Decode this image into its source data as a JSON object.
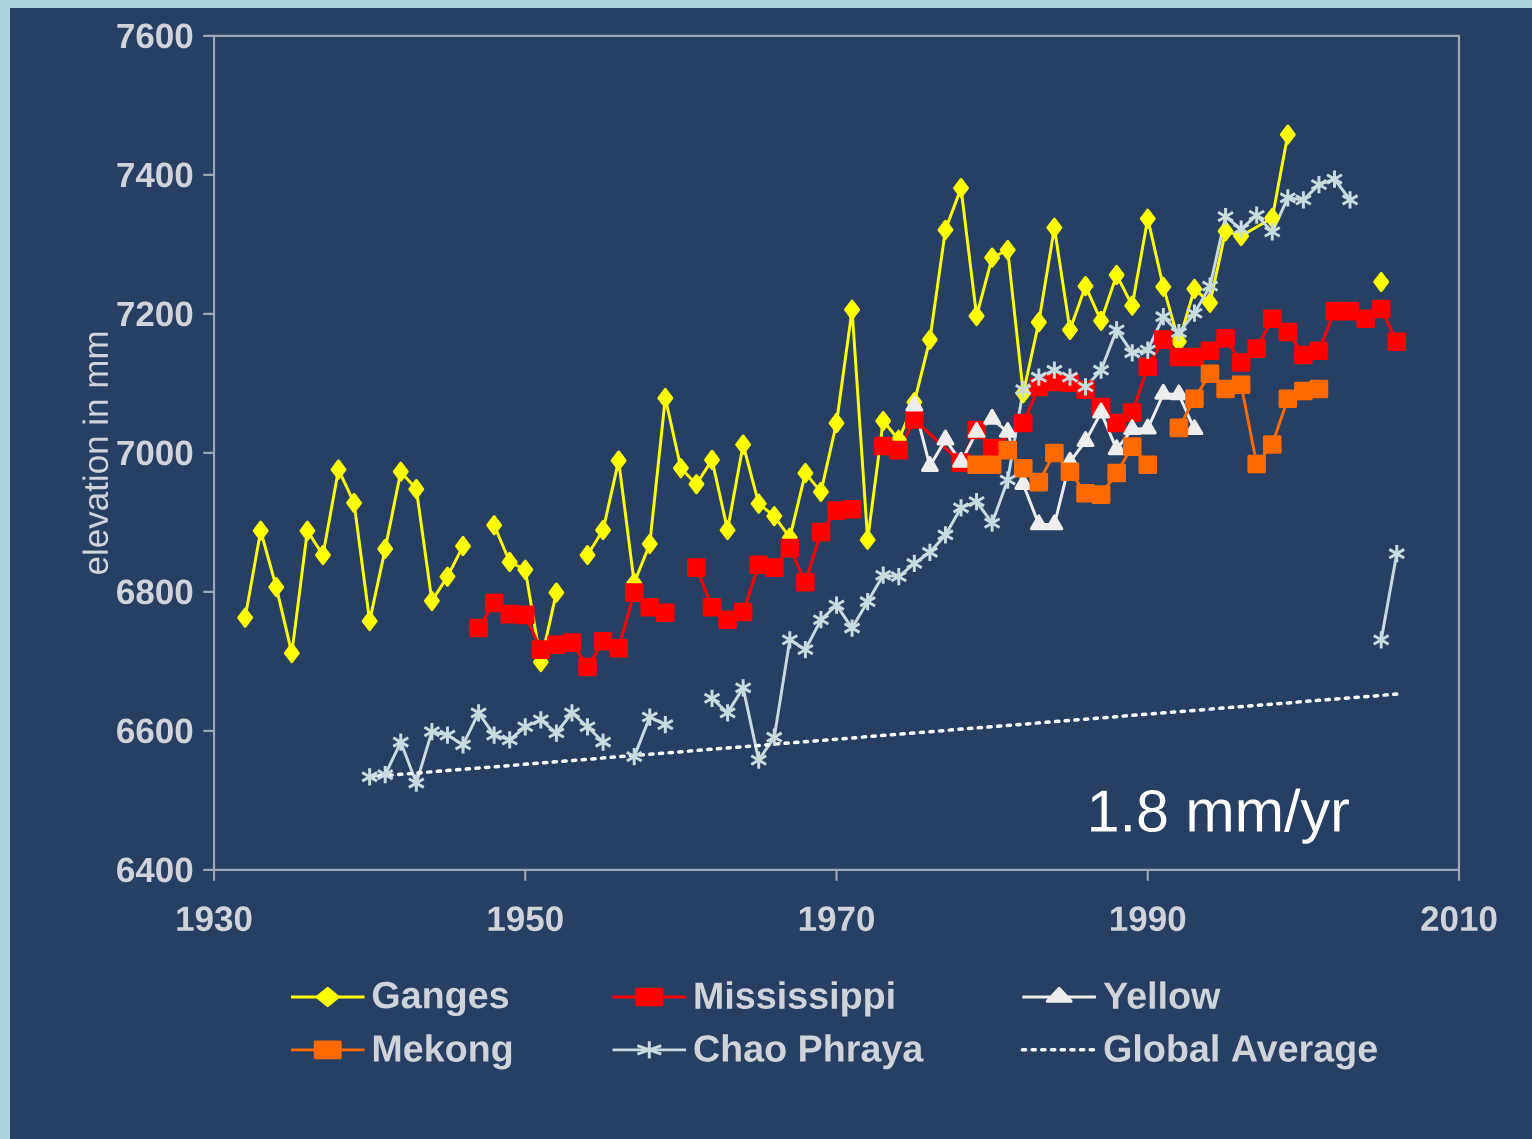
{
  "chart_data": {
    "type": "line",
    "ylabel": "elevation in mm",
    "xlim": [
      1930,
      2010
    ],
    "xticks": [
      1930,
      1950,
      1970,
      1990,
      2010
    ],
    "ylim": [
      6400,
      7600
    ],
    "yticks": [
      6400,
      6600,
      6800,
      7000,
      7200,
      7400,
      7600
    ],
    "legend": "bottom",
    "annotations": [
      "1.8 mm/yr"
    ],
    "series": [
      {
        "name": "Ganges",
        "color": "#ffff00",
        "marker": "diamond",
        "line_style": "solid",
        "x": [
          1932,
          1933,
          1934,
          1935,
          1936,
          1937,
          1938,
          1939,
          1940,
          1941,
          1942,
          1943,
          1944,
          1945,
          1946,
          1947,
          1948,
          1949,
          1950,
          1951,
          1952,
          1953,
          1954,
          1955,
          1956,
          1957,
          1958,
          1959,
          1960,
          1961,
          1962,
          1963,
          1964,
          1965,
          1966,
          1967,
          1968,
          1969,
          1970,
          1971,
          1972,
          1973,
          1974,
          1975,
          1976,
          1977,
          1978,
          1979,
          1980,
          1981,
          1982,
          1983,
          1984,
          1985,
          1986,
          1987,
          1988,
          1989,
          1990,
          1991,
          1992,
          1993,
          1994,
          1995,
          1996,
          1998,
          1999,
          2000,
          2005
        ],
        "values": [
          6763,
          6888,
          6807,
          6712,
          6888,
          6853,
          6976,
          6928,
          6758,
          6862,
          6973,
          6948,
          6787,
          6822,
          6866,
          null,
          6896,
          6843,
          6832,
          6699,
          6799,
          null,
          6853,
          6889,
          6989,
          6813,
          6869,
          7079,
          6978,
          6955,
          6990,
          6889,
          7012,
          6927,
          6909,
          6878,
          6971,
          6944,
          7043,
          7206,
          6875,
          7046,
          7019,
          7073,
          7163,
          7321,
          7381,
          7197,
          7281,
          7292,
          7086,
          7188,
          7324,
          7177,
          7240,
          7190,
          7256,
          7212,
          7337,
          7239,
          7160,
          7236,
          7216,
          7319,
          7312,
          7338,
          7458,
          null,
          7246
        ]
      },
      {
        "name": "Mississippi",
        "color": "#ff0000",
        "marker": "square",
        "line_style": "solid",
        "x": [
          1947,
          1948,
          1949,
          1950,
          1951,
          1952,
          1953,
          1954,
          1955,
          1956,
          1957,
          1958,
          1959,
          1960,
          1961,
          1962,
          1963,
          1964,
          1965,
          1966,
          1967,
          1968,
          1969,
          1970,
          1971,
          1972,
          1973,
          1974,
          1975,
          1978,
          1979,
          1980,
          1982,
          1983,
          1984,
          1985,
          1986,
          1987,
          1988,
          1989,
          1990,
          1991,
          1992,
          1993,
          1994,
          1995,
          1996,
          1997,
          1998,
          1999,
          2000,
          2001,
          2002,
          2003,
          2004,
          2005,
          2006
        ],
        "values": [
          6748,
          6784,
          6768,
          6767,
          6717,
          6724,
          6727,
          6692,
          6729,
          6719,
          6799,
          6778,
          6770,
          null,
          6835,
          6778,
          6760,
          6771,
          6839,
          6835,
          6863,
          6814,
          6886,
          6917,
          6919,
          null,
          7010,
          7004,
          7048,
          6986,
          7033,
          7007,
          7043,
          7095,
          7102,
          7101,
          7091,
          7066,
          7043,
          7058,
          7124,
          7163,
          7138,
          7138,
          7147,
          7165,
          7130,
          7150,
          7193,
          7174,
          7141,
          7147,
          7204,
          7204,
          7193,
          7207,
          7160
        ]
      },
      {
        "name": "Yellow",
        "color": "#eeeeee",
        "marker": "triangle",
        "line_style": "solid",
        "x": [
          1975,
          1976,
          1977,
          1978,
          1979,
          1980,
          1981,
          1982,
          1983,
          1984,
          1985,
          1986,
          1987,
          1988,
          1989,
          1990,
          1991,
          1992,
          1993
        ],
        "values": [
          7068,
          6981,
          7019,
          6987,
          7030,
          7049,
          7030,
          6955,
          6897,
          6897,
          6987,
          7017,
          7058,
          7005,
          7034,
          7035,
          7085,
          7084,
          7034
        ]
      },
      {
        "name": "Mekong",
        "color": "#ff6a00",
        "marker": "square",
        "line_style": "solid",
        "x": [
          1979,
          1980,
          1981,
          1982,
          1983,
          1984,
          1985,
          1986,
          1987,
          1988,
          1989,
          1990,
          1991,
          1992,
          1993,
          1994,
          1995,
          1996,
          1997,
          1998,
          1999,
          2000,
          2001
        ],
        "values": [
          6983,
          6983,
          7004,
          6978,
          6958,
          7000,
          6973,
          6942,
          6940,
          6971,
          7009,
          6983,
          null,
          7036,
          7078,
          7114,
          7092,
          7098,
          6984,
          7012,
          7078,
          7089,
          7092
        ]
      },
      {
        "name": "Chao Phraya",
        "color": "#c8dce0",
        "marker": "cross",
        "line_style": "solid",
        "x": [
          1940,
          1941,
          1942,
          1943,
          1944,
          1945,
          1946,
          1947,
          1948,
          1949,
          1950,
          1951,
          1952,
          1953,
          1954,
          1955,
          1956,
          1957,
          1958,
          1959,
          1960,
          1962,
          1963,
          1964,
          1965,
          1966,
          1967,
          1968,
          1969,
          1970,
          1971,
          1972,
          1973,
          1974,
          1975,
          1976,
          1977,
          1978,
          1979,
          1980,
          1981,
          1982,
          1983,
          1984,
          1985,
          1986,
          1987,
          1988,
          1989,
          1990,
          1991,
          1992,
          1993,
          1994,
          1995,
          1996,
          1997,
          1998,
          1999,
          2000,
          2001,
          2002,
          2003,
          2004,
          2005,
          2006
        ],
        "values": [
          6534,
          6537,
          6584,
          6525,
          6599,
          6594,
          6580,
          6626,
          6594,
          6587,
          6606,
          6616,
          6597,
          6626,
          6606,
          6584,
          null,
          6563,
          6620,
          6609,
          null,
          6647,
          6626,
          6662,
          6558,
          6591,
          6731,
          6717,
          6760,
          6781,
          6748,
          6786,
          6824,
          6822,
          6841,
          6857,
          6882,
          6921,
          6930,
          6899,
          6961,
          7091,
          7109,
          7119,
          7109,
          7095,
          7119,
          7177,
          7144,
          7148,
          7196,
          7173,
          7201,
          7240,
          7340,
          7322,
          7342,
          7318,
          7367,
          7364,
          7386,
          7394,
          7364,
          null,
          6731,
          6855
        ]
      },
      {
        "name": "Global Average",
        "color": "#ffffff",
        "marker": "none",
        "line_style": "dotted",
        "x": [
          1940,
          2006
        ],
        "values": [
          6534,
          6653
        ]
      }
    ]
  }
}
